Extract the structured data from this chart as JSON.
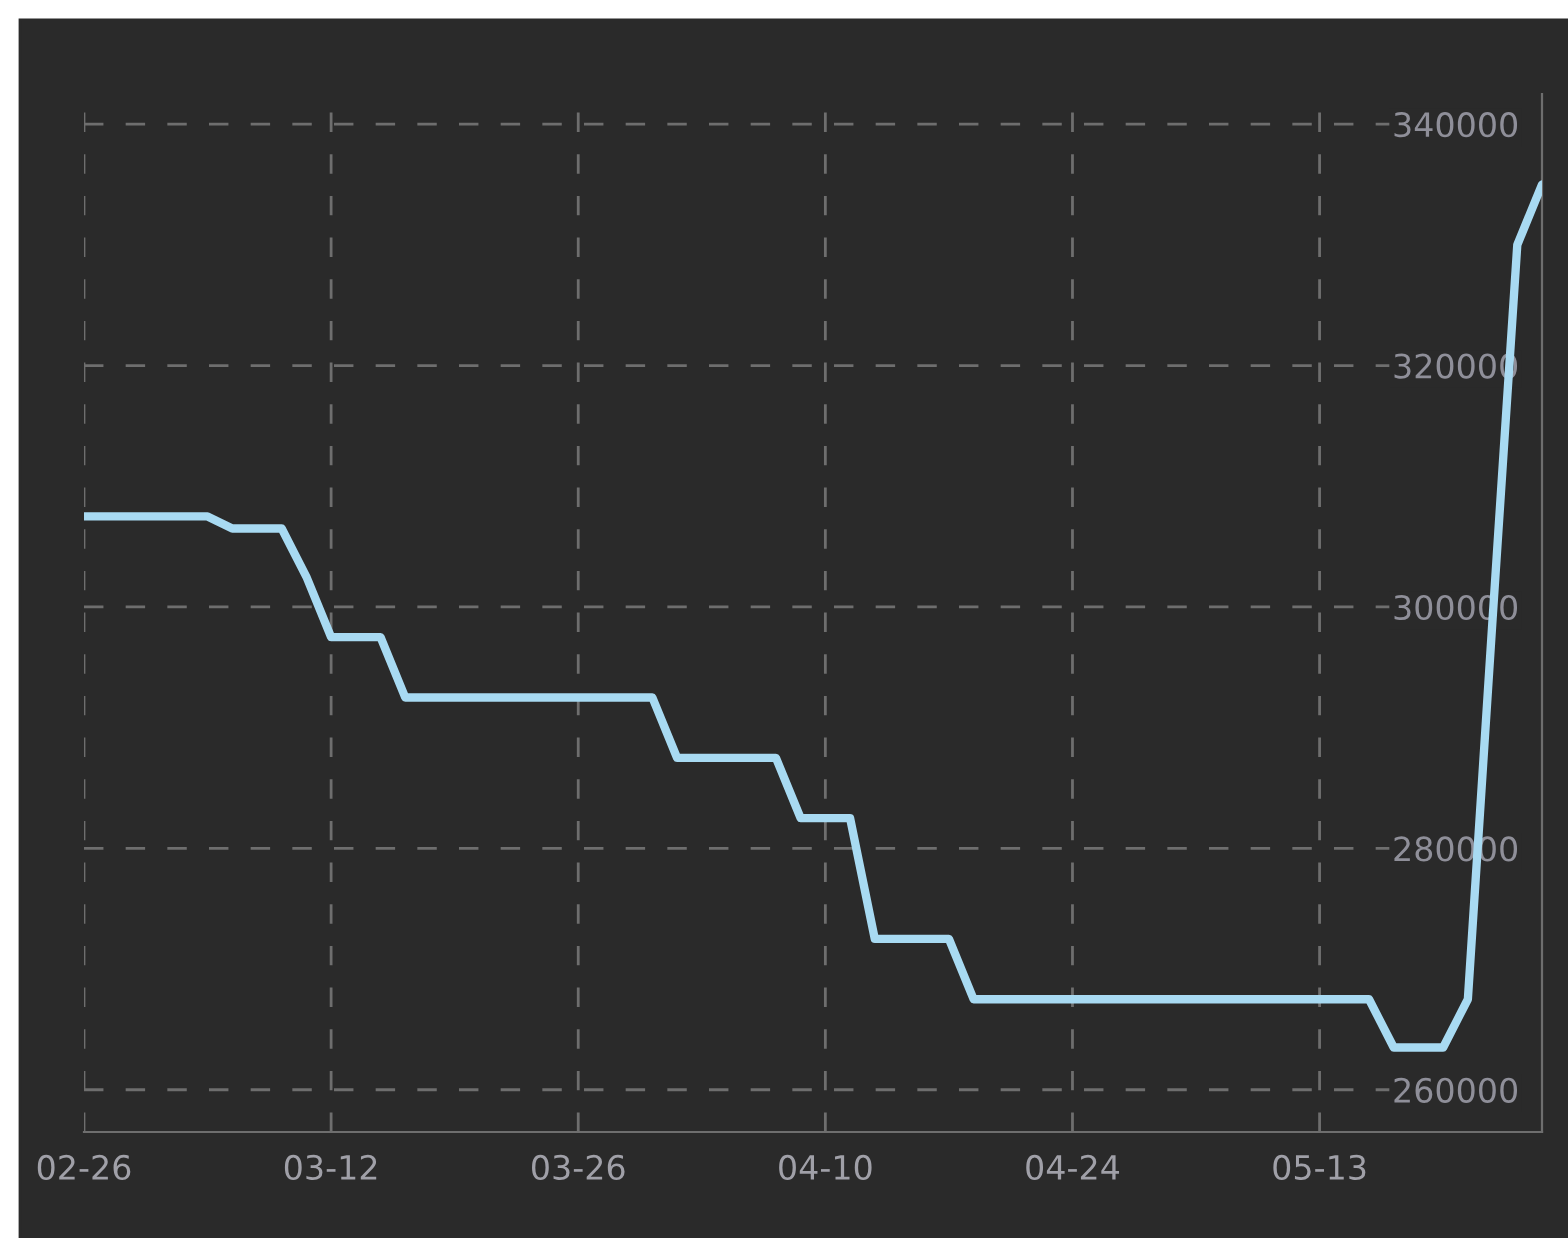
{
  "chart_data": {
    "type": "line",
    "categories": [
      "02-26",
      null,
      null,
      null,
      null,
      null,
      null,
      null,
      null,
      null,
      "03-12",
      null,
      null,
      null,
      null,
      null,
      null,
      null,
      null,
      null,
      "03-26",
      null,
      null,
      null,
      null,
      null,
      null,
      null,
      null,
      null,
      "04-10",
      null,
      null,
      null,
      null,
      null,
      null,
      null,
      null,
      null,
      "04-24",
      null,
      null,
      null,
      null,
      null,
      null,
      null,
      null,
      null,
      "05-13",
      null,
      null,
      null,
      null,
      null,
      null,
      null,
      null,
      null
    ],
    "series": [
      {
        "color": "#a8daf2",
        "values": [
          307500,
          307500,
          307500,
          307500,
          307500,
          307500,
          306500,
          306500,
          306500,
          302500,
          297500,
          297500,
          297500,
          292500,
          292500,
          292500,
          292500,
          292500,
          292500,
          292500,
          292500,
          292500,
          292500,
          292500,
          287500,
          287500,
          287500,
          287500,
          287500,
          282500,
          282500,
          282500,
          272500,
          272500,
          272500,
          272500,
          267500,
          267500,
          267500,
          267500,
          267500,
          267500,
          267500,
          267500,
          267500,
          267500,
          267500,
          267500,
          267500,
          267500,
          267500,
          267500,
          267500,
          263500,
          263500,
          263500,
          267500,
          299000,
          330000,
          335000
        ]
      }
    ],
    "ylim": [
      256500,
      342500
    ],
    "yticks": [
      260000,
      280000,
      300000,
      320000,
      340000
    ],
    "grid": true,
    "marker": "none",
    "line_style": "solid",
    "legend": false
  }
}
